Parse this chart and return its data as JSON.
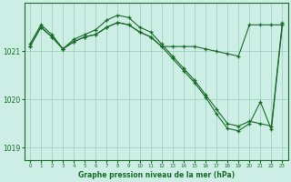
{
  "title": "Graphe pression niveau de la mer (hPa)",
  "bg_color": "#cceee4",
  "grid_color": "#99ccbb",
  "line_color": "#1a6b2a",
  "xlim": [
    -0.5,
    23.5
  ],
  "ylim": [
    1018.75,
    1022.0
  ],
  "yticks": [
    1019,
    1020,
    1021
  ],
  "xticks": [
    0,
    1,
    2,
    3,
    4,
    5,
    6,
    7,
    8,
    9,
    10,
    11,
    12,
    13,
    14,
    15,
    16,
    17,
    18,
    19,
    20,
    21,
    22,
    23
  ],
  "series1": {
    "x": [
      0,
      1,
      2,
      3,
      4,
      5,
      6,
      7,
      8,
      9,
      10,
      11,
      12,
      13,
      14,
      15,
      16,
      17,
      18,
      19,
      20,
      21,
      22,
      23
    ],
    "y": [
      1021.15,
      1021.55,
      1021.35,
      1021.05,
      1021.25,
      1021.35,
      1021.45,
      1021.65,
      1021.75,
      1021.7,
      1021.5,
      1021.4,
      1021.15,
      1020.9,
      1020.65,
      1020.4,
      1020.1,
      1019.8,
      1019.5,
      1019.45,
      1019.55,
      1019.5,
      1019.45,
      1021.6
    ]
  },
  "series2": {
    "x": [
      0,
      1,
      2,
      3,
      4,
      5,
      6,
      7,
      8,
      9,
      10,
      11,
      12,
      13,
      14,
      15,
      16,
      17,
      18,
      19,
      20,
      21,
      22,
      23
    ],
    "y": [
      1021.1,
      1021.5,
      1021.3,
      1021.05,
      1021.2,
      1021.3,
      1021.35,
      1021.5,
      1021.6,
      1021.55,
      1021.4,
      1021.3,
      1021.1,
      1021.1,
      1021.1,
      1021.1,
      1021.05,
      1021.0,
      1020.95,
      1020.9,
      1021.55,
      1021.55,
      1021.55,
      1021.55
    ]
  },
  "series3": {
    "x": [
      0,
      1,
      2,
      3,
      4,
      5,
      6,
      7,
      8,
      9,
      10,
      11,
      12,
      13,
      14,
      15,
      16,
      17,
      18,
      19,
      20,
      21,
      22,
      23
    ],
    "y": [
      1021.1,
      1021.5,
      1021.3,
      1021.05,
      1021.2,
      1021.3,
      1021.35,
      1021.5,
      1021.6,
      1021.55,
      1021.4,
      1021.3,
      1021.1,
      1020.85,
      1020.6,
      1020.35,
      1020.05,
      1019.7,
      1019.4,
      1019.35,
      1019.5,
      1019.95,
      1019.38,
      1021.55
    ]
  }
}
